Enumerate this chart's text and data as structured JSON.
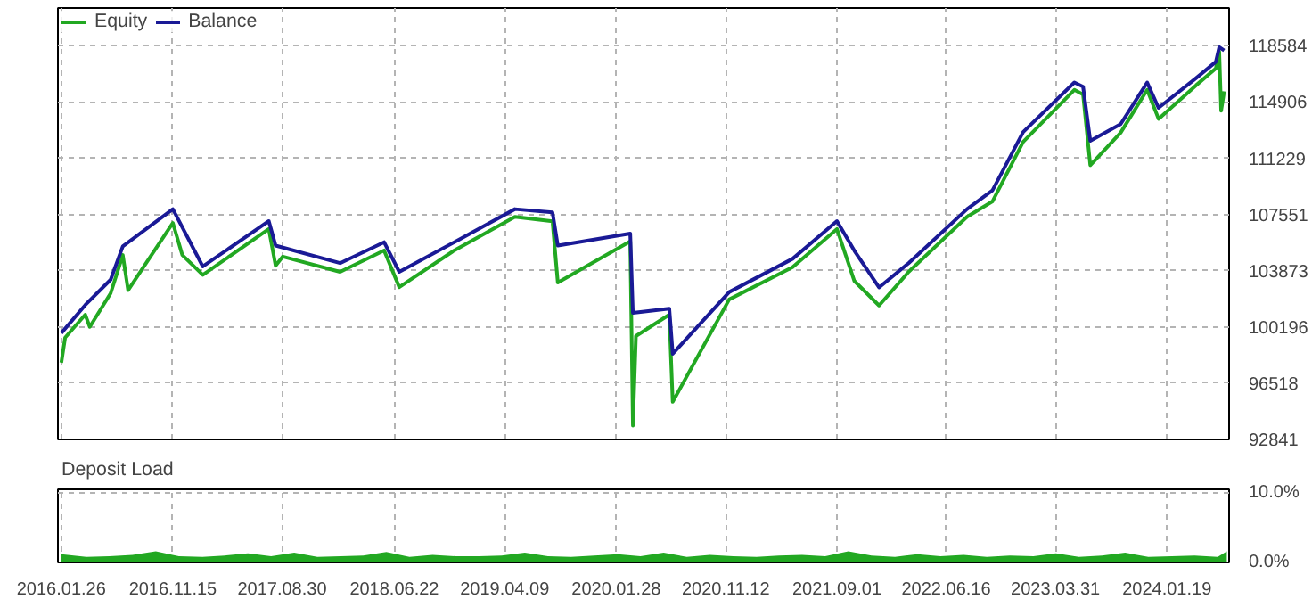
{
  "chart_data": [
    {
      "type": "line",
      "xlim": [
        "2016-01-17",
        "2024-07-01"
      ],
      "ylim": [
        92841,
        121050
      ],
      "xticks": [
        {
          "value": "2016-01-26",
          "label": null
        },
        {
          "value": "2016-11-15",
          "label": null
        },
        {
          "value": "2017-08-30",
          "label": null
        },
        {
          "value": "2018-06-22",
          "label": null
        },
        {
          "value": "2019-04-09",
          "label": null
        },
        {
          "value": "2020-01-28",
          "label": null
        },
        {
          "value": "2020-11-12",
          "label": null
        },
        {
          "value": "2021-09-01",
          "label": null
        },
        {
          "value": "2022-06-16",
          "label": null
        },
        {
          "value": "2023-03-31",
          "label": null
        },
        {
          "value": "2024-01-19",
          "label": null
        }
      ],
      "yticks": [
        92841,
        96518,
        100196,
        103873,
        107551,
        111229,
        114906,
        118584
      ],
      "tick_labels": "y",
      "grid": true,
      "legend": "top left",
      "marker": "none",
      "line_style": "solid",
      "series": [
        {
          "name": "Equity",
          "color": "#22a822",
          "x": [
            "2016-01-26",
            "2016-02-05",
            "2016-03-29",
            "2016-04-10",
            "2016-06-04",
            "2016-07-06",
            "2016-07-20",
            "2016-11-15",
            "2016-12-10",
            "2017-02-02",
            "2017-07-26",
            "2017-08-13",
            "2017-09-01",
            "2018-01-30",
            "2018-05-26",
            "2018-07-05",
            "2018-11-27",
            "2019-05-06",
            "2019-08-13",
            "2019-08-27",
            "2020-03-05",
            "2020-03-12",
            "2020-03-20",
            "2020-06-16",
            "2020-06-25",
            "2020-11-21",
            "2021-05-07",
            "2021-09-01",
            "2021-10-17",
            "2021-12-21",
            "2022-03-09",
            "2022-08-10",
            "2022-10-16",
            "2023-01-05",
            "2023-05-20",
            "2023-06-12",
            "2023-07-01",
            "2023-09-19",
            "2023-11-28",
            "2023-12-28",
            "2024-04-05",
            "2024-05-27",
            "2024-06-05",
            "2024-06-10",
            "2024-06-18"
          ],
          "values": [
            97860,
            99500,
            101000,
            100200,
            102400,
            104900,
            102600,
            107000,
            104900,
            103600,
            106600,
            104200,
            104800,
            103800,
            105200,
            102800,
            105200,
            107400,
            107100,
            103100,
            105800,
            93750,
            99600,
            101000,
            95300,
            102000,
            104100,
            106600,
            103200,
            101600,
            103800,
            107400,
            108400,
            112300,
            115700,
            115400,
            110770,
            112900,
            115700,
            113800,
            116000,
            117100,
            118200,
            114340,
            115600
          ]
        },
        {
          "name": "Balance",
          "color": "#1a1a96",
          "x": [
            "2016-01-26",
            "2016-03-29",
            "2016-06-04",
            "2016-07-06",
            "2016-11-15",
            "2017-02-02",
            "2017-07-26",
            "2017-08-13",
            "2018-01-30",
            "2018-05-26",
            "2018-07-05",
            "2018-11-27",
            "2019-05-06",
            "2019-08-13",
            "2019-08-27",
            "2020-03-05",
            "2020-03-12",
            "2020-06-16",
            "2020-06-25",
            "2020-11-21",
            "2021-05-07",
            "2021-09-01",
            "2021-10-17",
            "2021-12-21",
            "2022-03-09",
            "2022-08-10",
            "2022-10-16",
            "2023-01-05",
            "2023-05-20",
            "2023-06-12",
            "2023-07-01",
            "2023-09-19",
            "2023-11-28",
            "2023-12-28",
            "2024-04-05",
            "2024-05-27",
            "2024-06-05",
            "2024-06-18"
          ],
          "values": [
            99800,
            101630,
            103290,
            105470,
            107900,
            104150,
            107120,
            105520,
            104370,
            105740,
            103800,
            105740,
            107900,
            107690,
            105520,
            106310,
            101120,
            101400,
            98440,
            102480,
            104650,
            107120,
            105180,
            102780,
            104370,
            107900,
            109120,
            112940,
            116180,
            115910,
            112370,
            113460,
            116180,
            114520,
            116470,
            117530,
            118490,
            118270
          ]
        }
      ]
    },
    {
      "type": "area",
      "title": "Deposit Load",
      "xlim": [
        "2016-01-17",
        "2024-07-01"
      ],
      "ylim": [
        0,
        10.5
      ],
      "xticks": [
        {
          "value": "2016-01-26",
          "label": "2016.01.26"
        },
        {
          "value": "2016-11-15",
          "label": "2016.11.15"
        },
        {
          "value": "2017-08-30",
          "label": "2017.08.30"
        },
        {
          "value": "2018-06-22",
          "label": "2018.06.22"
        },
        {
          "value": "2019-04-09",
          "label": "2019.04.09"
        },
        {
          "value": "2020-01-28",
          "label": "2020.01.28"
        },
        {
          "value": "2020-11-12",
          "label": "2020.11.12"
        },
        {
          "value": "2021-09-01",
          "label": "2021.09.01"
        },
        {
          "value": "2022-06-16",
          "label": "2022.06.16"
        },
        {
          "value": "2023-03-31",
          "label": "2023.03.31"
        },
        {
          "value": "2024-01-19",
          "label": "2024.01.19"
        }
      ],
      "yticks": [
        {
          "value": 0,
          "label": "0.0%"
        },
        {
          "value": 10,
          "label": "10.0%"
        }
      ],
      "grid": true,
      "color": "#22a822",
      "x": [
        "2016-01-26",
        "2016-04-01",
        "2016-06-01",
        "2016-08-01",
        "2016-10-01",
        "2016-12-01",
        "2017-02-01",
        "2017-04-01",
        "2017-06-01",
        "2017-08-01",
        "2017-10-01",
        "2017-12-01",
        "2018-02-01",
        "2018-04-01",
        "2018-06-01",
        "2018-08-01",
        "2018-10-01",
        "2018-12-01",
        "2019-02-01",
        "2019-04-01",
        "2019-06-01",
        "2019-08-01",
        "2019-10-01",
        "2019-12-01",
        "2020-02-01",
        "2020-04-01",
        "2020-06-01",
        "2020-08-01",
        "2020-10-01",
        "2020-12-01",
        "2021-02-01",
        "2021-04-01",
        "2021-06-01",
        "2021-08-01",
        "2021-10-01",
        "2021-12-01",
        "2022-02-01",
        "2022-04-01",
        "2022-06-01",
        "2022-08-01",
        "2022-10-01",
        "2022-12-01",
        "2023-02-01",
        "2023-04-01",
        "2023-06-01",
        "2023-08-01",
        "2023-10-01",
        "2023-12-01",
        "2024-02-01",
        "2024-04-01",
        "2024-06-01",
        "2024-06-25"
      ],
      "values": [
        1.2,
        0.8,
        0.9,
        1.1,
        1.6,
        0.9,
        0.8,
        1.0,
        1.3,
        0.9,
        1.4,
        0.8,
        0.9,
        1.0,
        1.5,
        0.8,
        1.1,
        0.9,
        0.9,
        1.0,
        1.4,
        0.9,
        0.8,
        1.0,
        1.2,
        0.9,
        1.4,
        0.8,
        1.1,
        0.9,
        0.8,
        1.0,
        1.1,
        0.9,
        1.6,
        1.0,
        0.8,
        1.2,
        0.9,
        1.1,
        0.8,
        1.0,
        0.9,
        1.3,
        0.8,
        1.0,
        1.4,
        0.8,
        0.9,
        1.0,
        0.8,
        1.6
      ]
    }
  ]
}
